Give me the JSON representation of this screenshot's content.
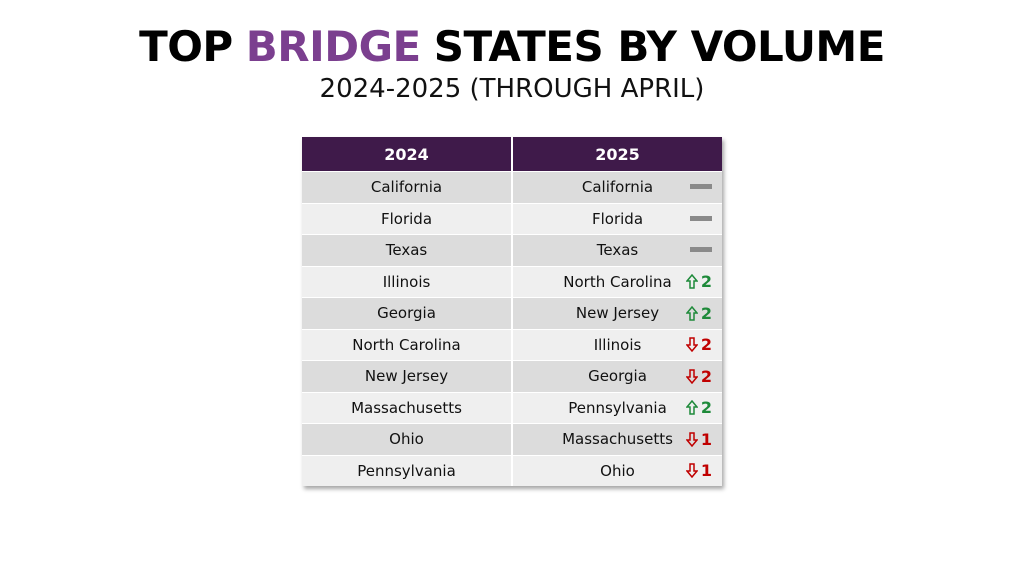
{
  "header": {
    "title": [
      "TOP",
      "BRIDGE",
      "STATES BY VOLUME"
    ],
    "subtitle": "2024-2025 (THROUGH APRIL)"
  },
  "table": {
    "columns": [
      "2024",
      "2025"
    ],
    "rows": [
      {
        "y2024": "California",
        "y2025": "California",
        "change": {
          "direction": "same"
        }
      },
      {
        "y2024": "Florida",
        "y2025": "Florida",
        "change": {
          "direction": "same"
        }
      },
      {
        "y2024": "Texas",
        "y2025": "Texas",
        "change": {
          "direction": "same"
        }
      },
      {
        "y2024": "Illinois",
        "y2025": "North Carolina",
        "change": {
          "direction": "up",
          "amount": 2
        }
      },
      {
        "y2024": "Georgia",
        "y2025": "New Jersey",
        "change": {
          "direction": "up",
          "amount": 2
        }
      },
      {
        "y2024": "North Carolina",
        "y2025": "Illinois",
        "change": {
          "direction": "down",
          "amount": 2
        }
      },
      {
        "y2024": "New Jersey",
        "y2025": "Georgia",
        "change": {
          "direction": "down",
          "amount": 2
        }
      },
      {
        "y2024": "Massachusetts",
        "y2025": "Pennsylvania",
        "change": {
          "direction": "up",
          "amount": 2
        }
      },
      {
        "y2024": "Ohio",
        "y2025": "Massachusetts",
        "change": {
          "direction": "down",
          "amount": 1
        }
      },
      {
        "y2024": "Pennsylvania",
        "y2025": "Ohio",
        "change": {
          "direction": "down",
          "amount": 1
        }
      }
    ]
  }
}
